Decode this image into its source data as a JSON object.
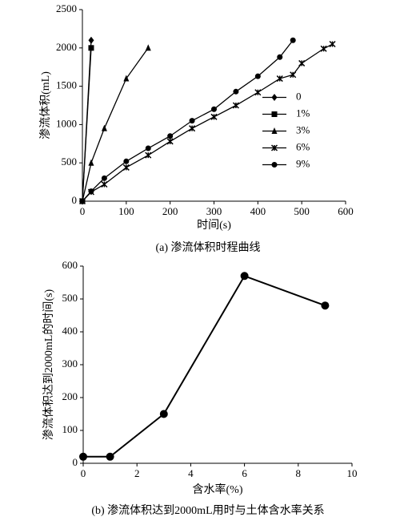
{
  "chart_data": [
    {
      "type": "line",
      "caption": "(a) 渗流体积时程曲线",
      "xlabel": "时间(s)",
      "ylabel": "渗流体积(mL)",
      "xlim": [
        0,
        600
      ],
      "xticks": [
        0,
        100,
        200,
        300,
        400,
        500,
        600
      ],
      "ylim": [
        0,
        2500
      ],
      "yticks": [
        0,
        500,
        1000,
        1500,
        2000,
        2500
      ],
      "legend": "center right",
      "color": "#000000",
      "series": [
        {
          "name": "0",
          "marker": "diamond",
          "x": [
            0,
            20
          ],
          "values": [
            0,
            2100
          ]
        },
        {
          "name": "1%",
          "marker": "square",
          "x": [
            0,
            20
          ],
          "values": [
            0,
            2000
          ]
        },
        {
          "name": "3%",
          "marker": "triangle",
          "x": [
            0,
            20,
            50,
            100,
            150
          ],
          "values": [
            0,
            500,
            950,
            1600,
            2000
          ]
        },
        {
          "name": "6%",
          "marker": "star",
          "x": [
            0,
            20,
            50,
            100,
            150,
            200,
            250,
            300,
            350,
            400,
            450,
            480,
            500,
            550,
            570
          ],
          "values": [
            0,
            120,
            220,
            440,
            600,
            780,
            950,
            1100,
            1250,
            1420,
            1600,
            1650,
            1800,
            1990,
            2050
          ]
        },
        {
          "name": "9%",
          "marker": "circle",
          "x": [
            0,
            20,
            50,
            100,
            150,
            200,
            250,
            300,
            350,
            400,
            450,
            480
          ],
          "values": [
            0,
            130,
            300,
            520,
            690,
            850,
            1050,
            1200,
            1430,
            1630,
            1880,
            2100
          ]
        }
      ]
    },
    {
      "type": "line",
      "caption": "(b) 渗流体积达到2000mL用时与土体含水率关系",
      "xlabel": "含水率(%)",
      "ylabel": "渗流体积达到2000mL的时间(s)",
      "xlim": [
        0,
        10
      ],
      "xticks": [
        0,
        2,
        4,
        6,
        8,
        10
      ],
      "ylim": [
        0,
        600
      ],
      "yticks": [
        0,
        100,
        200,
        300,
        400,
        500,
        600
      ],
      "color": "#000000",
      "series": [
        {
          "marker": "circle",
          "x": [
            0,
            1,
            3,
            6,
            9
          ],
          "values": [
            20,
            20,
            150,
            570,
            480
          ]
        }
      ]
    }
  ]
}
